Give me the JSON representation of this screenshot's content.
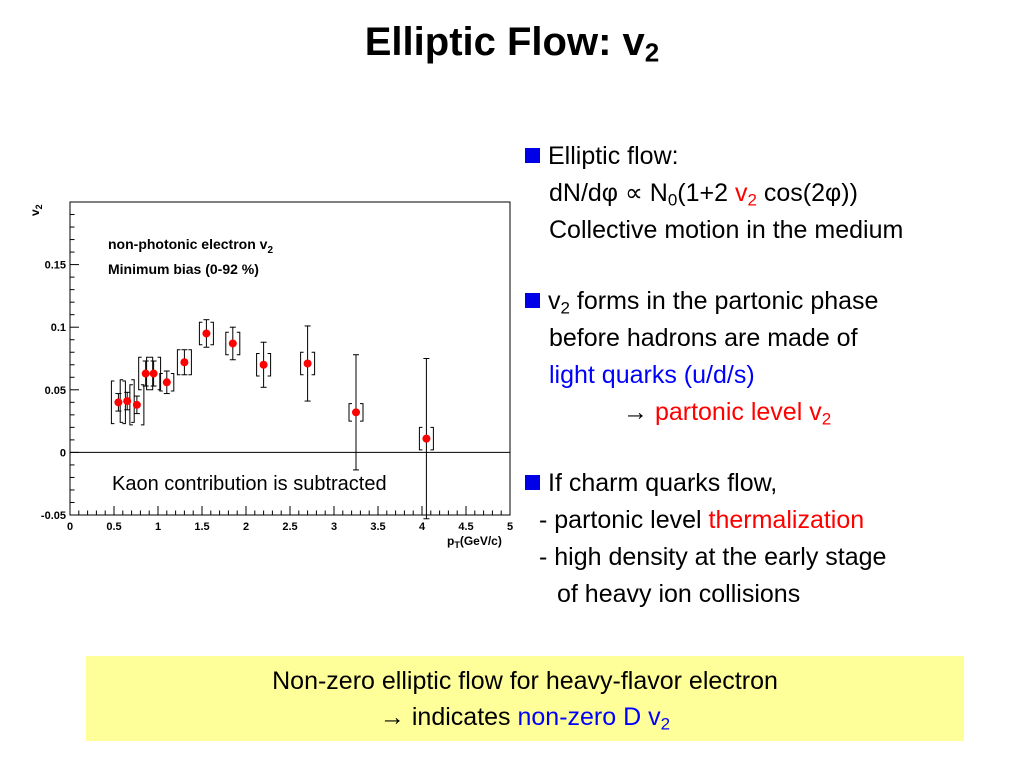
{
  "slide": {
    "title_main": "Elliptic Flow: v",
    "title_sub": "2"
  },
  "bullets": {
    "b1_head": "Elliptic flow:",
    "b1_formula_a": "dN/dφ ∝ N",
    "b1_formula_sub0": "0",
    "b1_formula_b": "(1+2 ",
    "b1_formula_v": "v",
    "b1_formula_vsub": "2",
    "b1_formula_c": " cos(2φ))",
    "b1_line3": "Collective motion in the medium",
    "b2_v": "v",
    "b2_vsub": "2",
    "b2_head": " forms in the partonic phase",
    "b2_line2": "before hadrons are made of",
    "b2_line3": "light quarks (u/d/s)",
    "b2_arrow": "→ ",
    "b2_line4": "partonic level v",
    "b2_line4_sub": "2",
    "b3_head": "If charm quarks flow,",
    "b3_line2a": "- partonic level ",
    "b3_line2b": "thermalization",
    "b3_line3": "- high density at the early stage",
    "b3_line4": "of heavy ion collisions"
  },
  "conclusion": {
    "line1": "Non-zero elliptic flow for heavy-flavor electron",
    "line2a": "→ indicates ",
    "line2b": "non-zero D v",
    "line2b_sub": "2"
  },
  "colors": {
    "accent_red": "#ff0000",
    "accent_blue": "#0000ff",
    "bullet_square": "#0000e6",
    "box_bg": "#ffff99",
    "marker": "#ff0000"
  },
  "chart_data": {
    "type": "scatter",
    "legend_line1_main": "non-photonic electron v",
    "legend_line1_sub": "2",
    "legend_line2": "Minimum bias (0-92 %)",
    "note": "Kaon contribution is subtracted",
    "xlabel_main": "p",
    "xlabel_sub": "T",
    "xlabel_rest": "(GeV/c)",
    "ylabel_main": "v",
    "ylabel_sub": "2",
    "xlim": [
      0,
      5
    ],
    "ylim": [
      -0.05,
      0.2
    ],
    "x_ticks": [
      0,
      0.5,
      1,
      1.5,
      2,
      2.5,
      3,
      3.5,
      4,
      4.5,
      5
    ],
    "x_tick_labels": [
      "0",
      "0.5",
      "1",
      "1.5",
      "2",
      "2.5",
      "3",
      "3.5",
      "4",
      "4.5",
      "5"
    ],
    "y_ticks": [
      -0.05,
      0,
      0.05,
      0.1,
      0.15
    ],
    "y_tick_labels": [
      "-0.05",
      "0",
      "0.05",
      "0.1",
      "0.15"
    ],
    "reference_line_y": 0,
    "grid": false,
    "points": [
      {
        "x": 0.55,
        "y": 0.04,
        "stat": 0.007,
        "sys": 0.017
      },
      {
        "x": 0.65,
        "y": 0.041,
        "stat": 0.007,
        "sys": 0.017
      },
      {
        "x": 0.76,
        "y": 0.038,
        "stat": 0.007,
        "sys": 0.016
      },
      {
        "x": 0.86,
        "y": 0.063,
        "stat": 0.01,
        "sys": 0.013
      },
      {
        "x": 0.95,
        "y": 0.063,
        "stat": 0.01,
        "sys": 0.013
      },
      {
        "x": 1.1,
        "y": 0.056,
        "stat": 0.009,
        "sys": 0.007
      },
      {
        "x": 1.3,
        "y": 0.072,
        "stat": 0.01,
        "sys": 0.01
      },
      {
        "x": 1.55,
        "y": 0.095,
        "stat": 0.011,
        "sys": 0.009
      },
      {
        "x": 1.85,
        "y": 0.087,
        "stat": 0.013,
        "sys": 0.009
      },
      {
        "x": 2.2,
        "y": 0.07,
        "stat": 0.018,
        "sys": 0.009
      },
      {
        "x": 2.7,
        "y": 0.071,
        "stat": 0.03,
        "sys": 0.009
      },
      {
        "x": 3.25,
        "y": 0.032,
        "stat": 0.046,
        "sys": 0.007
      },
      {
        "x": 4.05,
        "y": 0.011,
        "stat": 0.064,
        "sys": 0.009
      }
    ]
  }
}
